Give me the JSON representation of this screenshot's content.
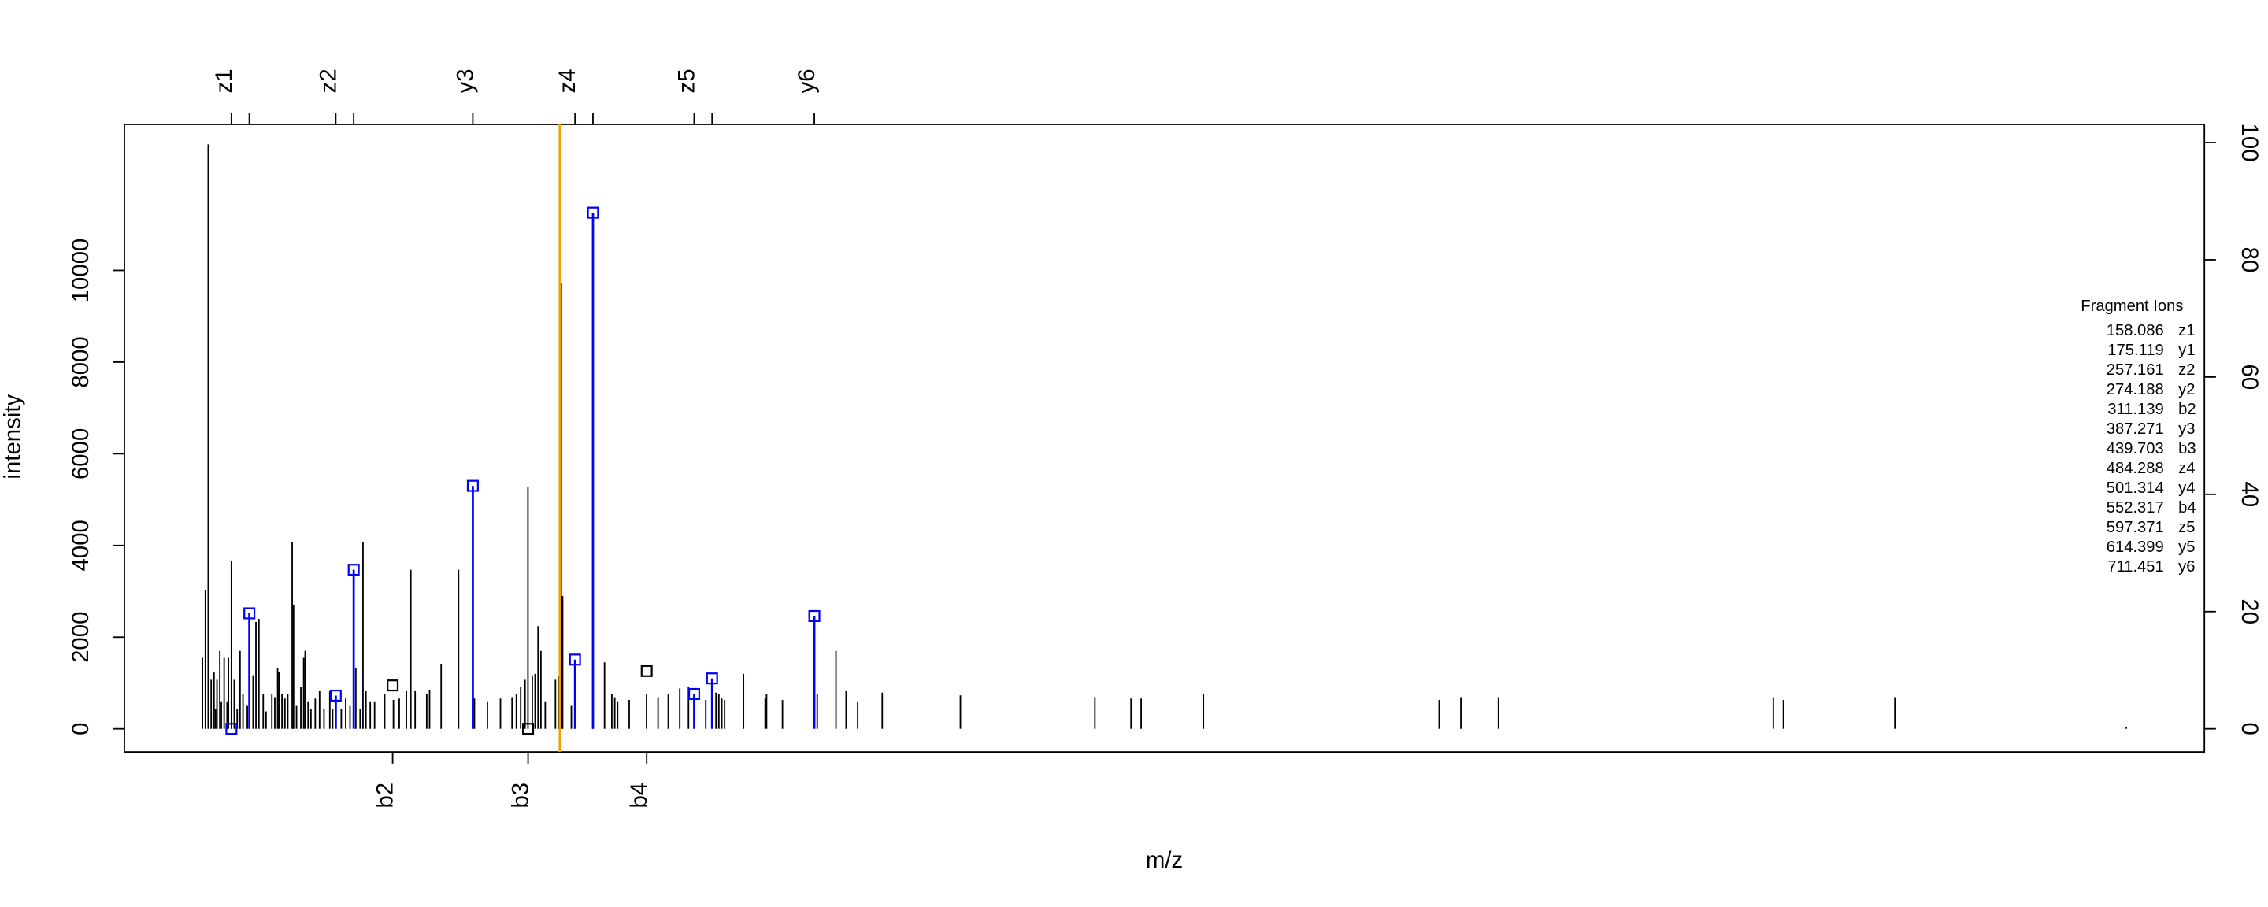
{
  "chart_data": {
    "type": "spectrum",
    "xlabel": "m/z",
    "ylabel": "intensity",
    "xlim": [
      56.5,
      2031
    ],
    "ylim": [
      -505,
      13186
    ],
    "yticks": [
      0,
      2000,
      4000,
      6000,
      8000,
      10000
    ],
    "y2lim": [
      -3.95,
      103.1
    ],
    "y2ticks": [
      0,
      20,
      40,
      60,
      80,
      100
    ],
    "top_ticks": [
      {
        "value": 158.086,
        "label": "z1"
      },
      175.119,
      {
        "value": 257.161,
        "label": "z2"
      },
      274.188,
      {
        "value": 387.271,
        "label": "y3"
      },
      {
        "value": 484.288,
        "label": "z4"
      },
      501.314,
      {
        "value": 597.371,
        "label": "z5"
      },
      614.399,
      {
        "value": 711.451,
        "label": "y6"
      }
    ],
    "top_label_color": "#0000ff",
    "bottom_ticks": [
      {
        "value": 311.139,
        "label": "b2"
      },
      {
        "value": 439.703,
        "label": "b3"
      },
      {
        "value": 552.317,
        "label": "b4"
      }
    ],
    "peaks": {
      "color": "#000000",
      "x": [
        130.6,
        133.4,
        136.1,
        138.9,
        141.6,
        143.0,
        144.4,
        147.1,
        148.5,
        151.2,
        154.0,
        155.3,
        158.1,
        160.8,
        163.6,
        166.3,
        169.1,
        173.2,
        178.7,
        181.4,
        184.2,
        188.3,
        191.0,
        196.5,
        199.3,
        202.0,
        203.4,
        206.1,
        208.9,
        211.6,
        215.8,
        217.1,
        219.9,
        224.0,
        226.7,
        228.1,
        230.9,
        233.6,
        237.7,
        241.8,
        246.0,
        251.5,
        254.2,
        262.4,
        266.6,
        270.7,
        276.2,
        280.3,
        283.0,
        285.8,
        289.9,
        294.0,
        303.6,
        311.9,
        317.4,
        324.2,
        328.4,
        332.5,
        343.5,
        346.2,
        357.2,
        373.7,
        388.8,
        401.1,
        413.5,
        424.5,
        428.6,
        432.7,
        436.8,
        439.6,
        443.7,
        446.4,
        449.2,
        451.9,
        456.0,
        465.7,
        468.4,
        471.2,
        472.5,
        480.8,
        501.4,
        512.3,
        519.2,
        522.0,
        524.7,
        535.7,
        552.2,
        563.1,
        572.8,
        583.7,
        592.0,
        608.4,
        618.1,
        620.8,
        623.6,
        626.3,
        644.2,
        664.8,
        666.1,
        681.2,
        714.2,
        732.0,
        741.6,
        752.6,
        775.9,
        850.1,
        977.8,
        1012.1,
        1021.7,
        1080.8,
        1304.6,
        1325.2,
        1360.9,
        1621.8,
        1631.4,
        1737.2,
        1956.9
      ],
      "values": [
        1550,
        3030,
        12750,
        1070,
        1230,
        440,
        1070,
        1700,
        600,
        1550,
        600,
        1550,
        3660,
        1070,
        440,
        1700,
        760,
        500,
        1170,
        2330,
        2400,
        760,
        380,
        760,
        690,
        1330,
        1230,
        760,
        660,
        760,
        4070,
        2710,
        500,
        910,
        1550,
        1700,
        600,
        440,
        660,
        820,
        440,
        820,
        440,
        440,
        660,
        500,
        1330,
        440,
        4070,
        820,
        600,
        600,
        760,
        630,
        660,
        820,
        3470,
        820,
        760,
        850,
        1420,
        3470,
        660,
        600,
        660,
        690,
        760,
        910,
        1070,
        5270,
        1170,
        1200,
        2240,
        1700,
        600,
        1070,
        1140,
        9720,
        2900,
        500,
        2300,
        1450,
        760,
        690,
        600,
        630,
        760,
        690,
        760,
        880,
        910,
        630,
        790,
        760,
        660,
        630,
        1200,
        660,
        760,
        630,
        760,
        1700,
        820,
        600,
        790,
        730,
        690,
        660,
        660,
        760,
        630,
        690,
        690,
        690,
        630,
        690,
        30
      ]
    },
    "matched": {
      "color": "#0000ff",
      "x": [
        158.086,
        175.119,
        257.161,
        274.188,
        387.271,
        484.288,
        501.314,
        597.371,
        614.399,
        711.451
      ],
      "values": [
        0,
        2520,
        725,
        3470,
        5300,
        1510,
        11260,
        760,
        1100,
        2460
      ]
    },
    "b_ions": {
      "color": "#000000",
      "x": [
        311.139,
        439.703,
        552.317
      ],
      "values": [
        946,
        0,
        1260
      ]
    },
    "precursor": {
      "x": 469.8,
      "color": "#f0a000"
    },
    "legend": {
      "title": "Fragment Ions",
      "mz": [
        158.086,
        175.119,
        257.161,
        274.188,
        311.139,
        387.271,
        439.703,
        484.288,
        501.314,
        552.317,
        597.371,
        614.399,
        711.451
      ],
      "names": [
        "z1",
        "y1",
        "z2",
        "y2",
        "b2",
        "y3",
        "b3",
        "z4",
        "y4",
        "b4",
        "z5",
        "y5",
        "y6"
      ]
    }
  }
}
